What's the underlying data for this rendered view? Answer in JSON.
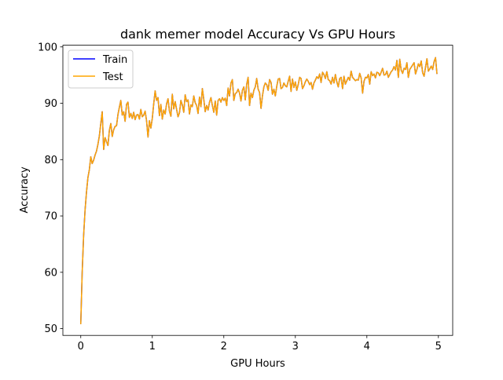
{
  "chart_data": {
    "type": "line",
    "title": "dank memer model Accuracy Vs GPU Hours",
    "xlabel": "GPU Hours",
    "ylabel": "Accuracy",
    "xlim": [
      -0.25,
      5.2
    ],
    "ylim": [
      48.8,
      100.3
    ],
    "xticks": [
      0,
      1,
      2,
      3,
      4,
      5
    ],
    "yticks": [
      50,
      60,
      70,
      80,
      90,
      100
    ],
    "grid": false,
    "legend_position": "upper-left",
    "series": [
      {
        "name": "Train",
        "color": "#0000ff",
        "x": [
          0,
          0.02,
          0.04,
          0.06,
          0.08,
          0.1,
          0.12,
          0.14,
          0.16,
          0.18,
          0.2,
          0.22,
          0.24,
          0.26,
          0.28,
          0.3,
          0.32,
          0.34,
          0.36,
          0.38,
          0.4,
          0.42,
          0.44,
          0.46,
          0.48,
          0.5,
          0.52,
          0.54,
          0.56,
          0.58,
          0.6,
          0.62,
          0.64,
          0.66,
          0.68,
          0.7,
          0.72,
          0.74,
          0.76,
          0.78,
          0.8,
          0.82,
          0.84,
          0.86,
          0.88,
          0.9,
          0.92,
          0.94,
          0.96,
          0.98,
          1.0,
          1.02,
          1.04,
          1.06,
          1.08,
          1.1,
          1.12,
          1.14,
          1.16,
          1.18,
          1.2,
          1.22,
          1.24,
          1.26,
          1.28,
          1.3,
          1.32,
          1.34,
          1.36,
          1.38,
          1.4,
          1.42,
          1.44,
          1.46,
          1.48,
          1.5,
          1.52,
          1.54,
          1.56,
          1.58,
          1.6,
          1.62,
          1.64,
          1.66,
          1.68,
          1.7,
          1.72,
          1.74,
          1.76,
          1.78,
          1.8,
          1.82,
          1.84,
          1.86,
          1.88,
          1.9,
          1.92,
          1.94,
          1.96,
          1.98,
          2.0,
          2.02,
          2.04,
          2.06,
          2.08,
          2.1,
          2.12,
          2.14,
          2.16,
          2.18,
          2.2,
          2.22,
          2.24,
          2.26,
          2.28,
          2.3,
          2.32,
          2.34,
          2.36,
          2.38,
          2.4,
          2.42,
          2.44,
          2.46,
          2.48,
          2.5,
          2.52,
          2.54,
          2.56,
          2.58,
          2.6,
          2.62,
          2.64,
          2.66,
          2.68,
          2.7,
          2.72,
          2.74,
          2.76,
          2.78,
          2.8,
          2.82,
          2.84,
          2.86,
          2.88,
          2.9,
          2.92,
          2.94,
          2.96,
          2.98,
          3.0,
          3.02,
          3.04,
          3.06,
          3.08,
          3.1,
          3.12,
          3.14,
          3.16,
          3.18,
          3.2,
          3.22,
          3.24,
          3.26,
          3.28,
          3.3,
          3.32,
          3.34,
          3.36,
          3.38,
          3.4,
          3.42,
          3.44,
          3.46,
          3.48,
          3.5,
          3.52,
          3.54,
          3.56,
          3.58,
          3.6,
          3.62,
          3.64,
          3.66,
          3.68,
          3.7,
          3.72,
          3.74,
          3.76,
          3.78,
          3.8,
          3.82,
          3.84,
          3.86,
          3.88,
          3.9,
          3.92,
          3.94,
          3.96,
          3.98,
          4.0,
          4.02,
          4.04,
          4.06,
          4.08,
          4.1,
          4.12,
          4.14,
          4.16,
          4.18,
          4.2,
          4.22,
          4.24,
          4.26,
          4.28,
          4.3,
          4.32,
          4.34,
          4.36,
          4.38,
          4.4,
          4.42,
          4.44,
          4.46,
          4.48,
          4.5,
          4.52,
          4.54,
          4.56,
          4.58,
          4.6,
          4.62,
          4.64,
          4.66,
          4.68,
          4.7,
          4.72,
          4.74,
          4.76,
          4.78,
          4.8,
          4.82,
          4.84,
          4.86,
          4.88,
          4.9,
          4.92,
          4.94,
          4.96,
          4.98
        ],
        "y": [
          50.8,
          60.0,
          66.5,
          71.0,
          74.2,
          76.8,
          78.2,
          80.5,
          79.3,
          79.9,
          80.8,
          81.5,
          82.7,
          84.2,
          86.4,
          88.5,
          81.8,
          83.9,
          83.2,
          82.5,
          85.2,
          86.4,
          84.1,
          85.3,
          85.9,
          86.0,
          88.0,
          89.3,
          90.5,
          87.9,
          88.5,
          86.8,
          89.8,
          90.2,
          87.5,
          88.2,
          87.3,
          88.4,
          87.1,
          87.9,
          88.0,
          87.2,
          88.9,
          87.6,
          87.9,
          88.6,
          86.9,
          84.0,
          86.9,
          85.6,
          87.3,
          89.9,
          92.2,
          90.5,
          91.0,
          87.8,
          89.8,
          87.2,
          88.8,
          88.1,
          89.9,
          90.8,
          88.6,
          87.7,
          91.6,
          89.0,
          90.3,
          88.9,
          87.6,
          88.3,
          90.5,
          89.7,
          88.4,
          91.5,
          90.3,
          90.6,
          88.1,
          89.7,
          89.4,
          91.3,
          90.1,
          89.6,
          88.2,
          91.1,
          89.4,
          92.6,
          90.7,
          88.5,
          89.6,
          88.8,
          90.2,
          91.0,
          89.6,
          88.4,
          90.4,
          87.9,
          90.5,
          90.8,
          90.2,
          91.0,
          90.5,
          90.9,
          89.6,
          92.7,
          91.3,
          93.6,
          94.2,
          90.5,
          91.7,
          91.9,
          92.5,
          91.8,
          90.4,
          92.3,
          92.9,
          90.6,
          93.4,
          94.6,
          89.6,
          91.8,
          91.0,
          92.3,
          92.9,
          94.4,
          92.5,
          91.9,
          89.1,
          91.3,
          92.9,
          93.6,
          93.3,
          92.3,
          94.2,
          93.7,
          91.6,
          92.5,
          91.3,
          93.0,
          94.3,
          94.4,
          92.6,
          92.8,
          93.6,
          93.1,
          92.9,
          93.9,
          94.8,
          92.1,
          94.3,
          92.8,
          93.8,
          92.3,
          93.3,
          94.6,
          94.4,
          92.6,
          93.1,
          93.8,
          94.3,
          93.9,
          93.3,
          93.7,
          92.5,
          93.6,
          94.1,
          94.7,
          94.4,
          95.2,
          93.7,
          95.5,
          95.1,
          94.4,
          95.6,
          94.2,
          94.0,
          93.4,
          94.6,
          93.6,
          95.1,
          93.8,
          92.9,
          94.4,
          94.6,
          92.6,
          94.8,
          93.4,
          94.0,
          94.6,
          94.1,
          95.7,
          94.6,
          94.3,
          94.0,
          94.2,
          94.1,
          95.3,
          94.5,
          91.8,
          93.9,
          94.6,
          94.5,
          95.1,
          93.4,
          95.6,
          94.9,
          95.2,
          94.5,
          95.5,
          95.4,
          94.9,
          95.5,
          96.2,
          95.0,
          95.1,
          95.7,
          94.6,
          95.1,
          95.6,
          95.9,
          96.5,
          95.9,
          97.6,
          94.6,
          97.8,
          95.9,
          95.3,
          96.2,
          96.0,
          97.2,
          94.6,
          96.0,
          96.4,
          96.8,
          97.2,
          95.2,
          96.0,
          97.0,
          96.5,
          97.5,
          95.4,
          94.8,
          96.4,
          97.9,
          95.7,
          96.1,
          96.6,
          96.0,
          97.4,
          98.1,
          95.2
        ],
        "y_note": ""
      },
      {
        "name": "Test",
        "color": "#ffa500",
        "same_as": ""
      }
    ]
  }
}
